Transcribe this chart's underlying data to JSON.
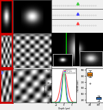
{
  "bg_color": "#f0f0f0",
  "panel_bg": "#000000",
  "line_colors": [
    "#ff3333",
    "#3333ff",
    "#33cc33"
  ],
  "line_labels": [
    "Widefield",
    "SIM Axial",
    "Standard SIM"
  ],
  "box_colors": [
    "#ff8800",
    "#2288ff"
  ],
  "sigma_wide": 0.38,
  "sigma_axial": 0.22,
  "sigma_3d": 0.17,
  "triangle_colors": [
    "#44cc44",
    "#4444ff",
    "#ff4444"
  ],
  "grid_freq": 8.0
}
